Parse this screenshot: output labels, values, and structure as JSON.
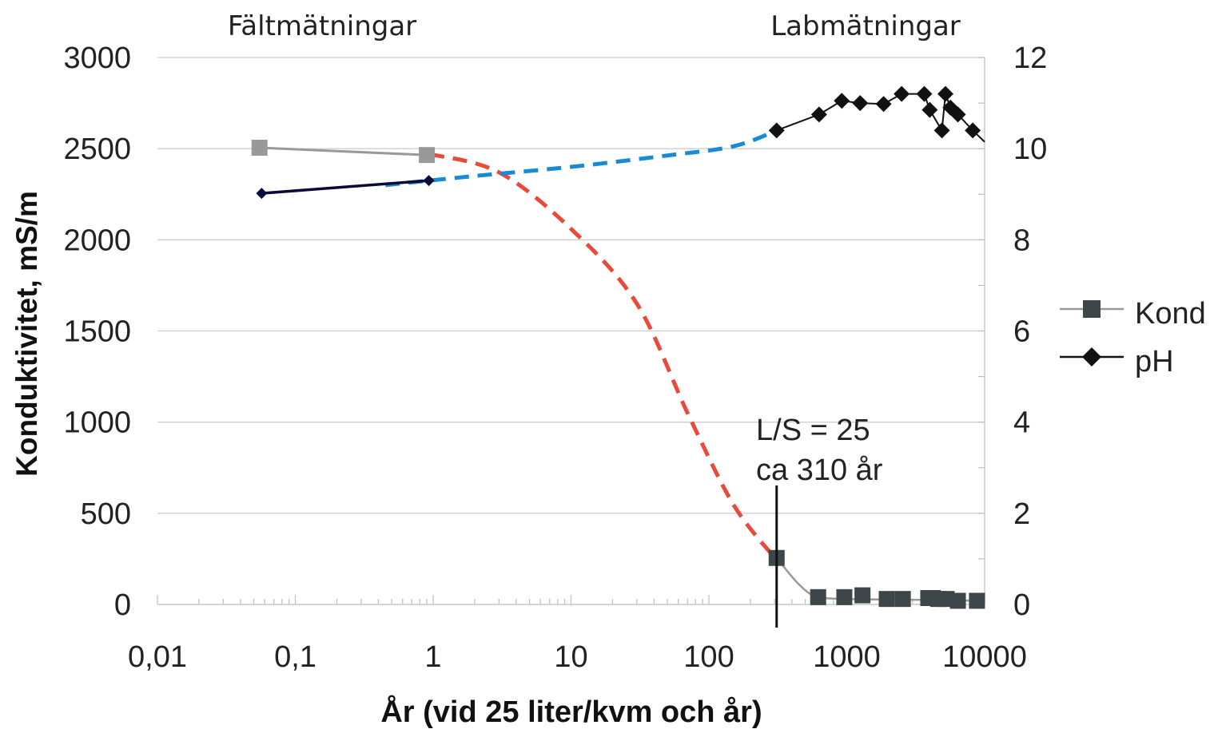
{
  "chart_data": {
    "type": "line",
    "x_scale": "log",
    "xlim": [
      0.01,
      10000
    ],
    "ylim_left": [
      0,
      3000
    ],
    "ylim_right": [
      0,
      12
    ],
    "grid": true,
    "legend_position": "right",
    "xlabel": "År (vid 25 liter/kvm och år)",
    "ylabel_left": "Konduktivitet, mS/m",
    "x_ticks": [
      "0,01",
      "0,1",
      "1",
      "10",
      "100",
      "1000",
      "10000"
    ],
    "y_left_ticks": [
      "0",
      "500",
      "1000",
      "1500",
      "2000",
      "2500",
      "3000"
    ],
    "y_right_ticks": [
      "0",
      "2",
      "4",
      "6",
      "8",
      "10",
      "12"
    ],
    "region_labels": {
      "field": "Fältmätningar",
      "lab": "Labmätningar"
    },
    "annotation": {
      "line1": "L/S = 25",
      "line2": "ca 310 år",
      "x": 310
    },
    "series": [
      {
        "name": "Kond",
        "axis": "left",
        "color": "#3d4648",
        "field_color": "#999999",
        "field_points": [
          [
            0.055,
            2505
          ],
          [
            0.9,
            2465
          ]
        ],
        "lab_points": [
          [
            310,
            255
          ],
          [
            620,
            40
          ],
          [
            960,
            40
          ],
          [
            1300,
            50
          ],
          [
            1950,
            30
          ],
          [
            2550,
            30
          ],
          [
            3900,
            35
          ],
          [
            4200,
            35
          ],
          [
            4600,
            30
          ],
          [
            5300,
            30
          ],
          [
            6400,
            20
          ],
          [
            8800,
            20
          ]
        ]
      },
      {
        "name": "pH",
        "axis": "right",
        "color": "#111111",
        "field_color": "#0a0a3a",
        "field_points": [
          [
            0.057,
            9.02
          ],
          [
            0.93,
            9.3
          ]
        ],
        "lab_points": [
          [
            310,
            10.4
          ],
          [
            630,
            10.75
          ],
          [
            920,
            11.05
          ],
          [
            1250,
            11.0
          ],
          [
            1850,
            10.98
          ],
          [
            2500,
            11.2
          ],
          [
            3650,
            11.2
          ],
          [
            4000,
            10.85
          ],
          [
            4900,
            10.4
          ],
          [
            5200,
            11.2
          ],
          [
            5650,
            10.9
          ],
          [
            6400,
            10.75
          ],
          [
            8200,
            10.4
          ],
          [
            10000,
            10.15
          ]
        ]
      }
    ],
    "trend_lines": [
      {
        "axis": "left",
        "color": "#e84a3c",
        "points": [
          [
            0.95,
            2470
          ],
          [
            3,
            2370
          ],
          [
            10,
            2060
          ],
          [
            30,
            1650
          ],
          [
            70,
            1050
          ],
          [
            150,
            550
          ],
          [
            300,
            255
          ]
        ]
      },
      {
        "axis": "right",
        "color": "#1a8ad4",
        "points": [
          [
            0.45,
            9.2
          ],
          [
            2,
            9.4
          ],
          [
            10,
            9.6
          ],
          [
            50,
            9.85
          ],
          [
            150,
            10.05
          ],
          [
            300,
            10.38
          ]
        ]
      }
    ],
    "kond_fit_line": {
      "axis": "left",
      "color": "#999999",
      "points": [
        [
          310,
          255
        ],
        [
          450,
          110
        ],
        [
          600,
          45
        ],
        [
          1000,
          30
        ],
        [
          4000,
          25
        ],
        [
          9000,
          20
        ]
      ]
    }
  }
}
